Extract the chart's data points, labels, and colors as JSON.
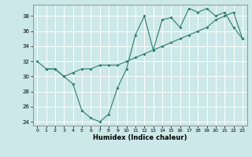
{
  "xlabel": "Humidex (Indice chaleur)",
  "bg_color": "#cce8e8",
  "grid_color": "#ffffff",
  "line_color": "#2e7d6e",
  "line1_x": [
    1,
    2,
    3,
    4,
    5,
    6,
    7,
    8,
    9,
    10,
    11,
    12,
    13,
    14,
    15,
    16,
    17,
    18,
    19,
    20,
    21,
    22,
    23
  ],
  "line1_y": [
    31.0,
    31.0,
    30.0,
    30.5,
    31.0,
    31.0,
    31.5,
    31.5,
    31.5,
    32.0,
    32.5,
    33.0,
    33.5,
    34.0,
    34.5,
    35.0,
    35.5,
    36.0,
    36.5,
    37.5,
    38.0,
    38.5,
    35.0
  ],
  "line2_x": [
    0,
    1,
    2,
    3,
    4,
    5,
    6,
    7,
    8,
    9,
    10,
    11,
    12,
    13,
    14,
    15,
    16,
    17,
    18,
    19,
    20,
    21,
    22,
    23
  ],
  "line2_y": [
    32.0,
    31.0,
    31.0,
    30.0,
    29.0,
    25.5,
    24.5,
    24.0,
    25.0,
    28.5,
    31.0,
    35.5,
    38.0,
    33.5,
    37.5,
    37.8,
    36.5,
    39.0,
    38.5,
    39.0,
    38.0,
    38.5,
    36.5,
    35.0
  ],
  "xlim": [
    -0.5,
    23.5
  ],
  "ylim": [
    23.5,
    39.5
  ],
  "yticks": [
    24,
    26,
    28,
    30,
    32,
    34,
    36,
    38
  ],
  "xticks": [
    0,
    1,
    2,
    3,
    4,
    5,
    6,
    7,
    8,
    9,
    10,
    11,
    12,
    13,
    14,
    15,
    16,
    17,
    18,
    19,
    20,
    21,
    22,
    23
  ],
  "figwidth": 3.2,
  "figheight": 2.0,
  "dpi": 100
}
